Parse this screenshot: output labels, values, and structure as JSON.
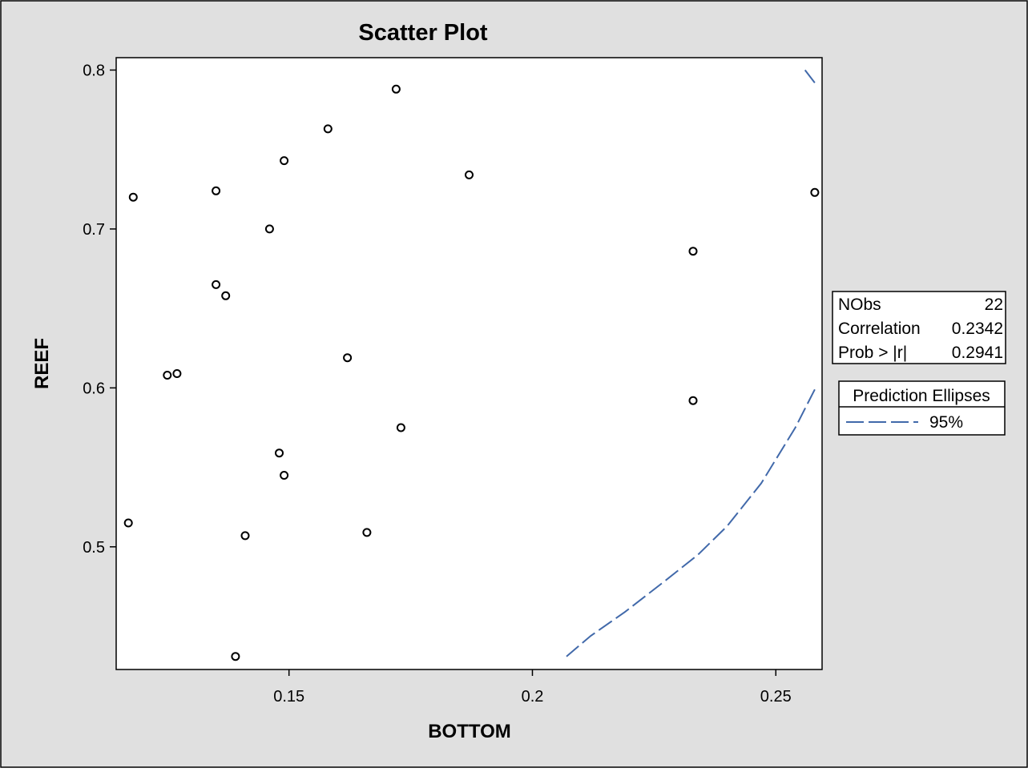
{
  "chart_data": {
    "type": "scatter",
    "title": "Scatter Plot",
    "xlabel": "BOTTOM",
    "ylabel": "REEF",
    "xlim": [
      0.1145,
      0.2595
    ],
    "ylim": [
      0.4228,
      0.8078
    ],
    "x_ticks": [
      0.15,
      0.2,
      0.25
    ],
    "x_tick_labels": [
      "0.15",
      "0.2",
      "0.25"
    ],
    "y_ticks": [
      0.5,
      0.6,
      0.7,
      0.8
    ],
    "y_tick_labels": [
      "0.5",
      "0.6",
      "0.7",
      "0.8"
    ],
    "grid": false,
    "points": [
      {
        "x": 0.172,
        "y": 0.788
      },
      {
        "x": 0.158,
        "y": 0.763
      },
      {
        "x": 0.149,
        "y": 0.743
      },
      {
        "x": 0.187,
        "y": 0.734
      },
      {
        "x": 0.135,
        "y": 0.724
      },
      {
        "x": 0.118,
        "y": 0.72
      },
      {
        "x": 0.258,
        "y": 0.723
      },
      {
        "x": 0.146,
        "y": 0.7
      },
      {
        "x": 0.233,
        "y": 0.686
      },
      {
        "x": 0.135,
        "y": 0.665
      },
      {
        "x": 0.137,
        "y": 0.658
      },
      {
        "x": 0.162,
        "y": 0.619
      },
      {
        "x": 0.127,
        "y": 0.609
      },
      {
        "x": 0.125,
        "y": 0.608
      },
      {
        "x": 0.233,
        "y": 0.592
      },
      {
        "x": 0.173,
        "y": 0.575
      },
      {
        "x": 0.148,
        "y": 0.559
      },
      {
        "x": 0.149,
        "y": 0.545
      },
      {
        "x": 0.117,
        "y": 0.515
      },
      {
        "x": 0.166,
        "y": 0.509
      },
      {
        "x": 0.141,
        "y": 0.507
      },
      {
        "x": 0.139,
        "y": 0.431
      }
    ],
    "ellipse_segments": [
      [
        [
          0.256,
          0.8
        ],
        [
          0.258,
          0.792
        ]
      ],
      [
        [
          0.258,
          0.599
        ],
        [
          0.254,
          0.575
        ],
        [
          0.247,
          0.54
        ],
        [
          0.24,
          0.513
        ],
        [
          0.234,
          0.495
        ],
        [
          0.227,
          0.478
        ],
        [
          0.219,
          0.459
        ],
        [
          0.212,
          0.444
        ],
        [
          0.207,
          0.431
        ]
      ]
    ],
    "ellipse_color": "#4169aa",
    "stats": [
      {
        "label": "NObs",
        "value": "22"
      },
      {
        "label": "Correlation",
        "value": "0.2342"
      },
      {
        "label": "Prob > |r|",
        "value": "0.2941"
      }
    ],
    "legend": {
      "title": "Prediction Ellipses",
      "entries": [
        {
          "label": "95%"
        }
      ],
      "placement": "right"
    }
  }
}
